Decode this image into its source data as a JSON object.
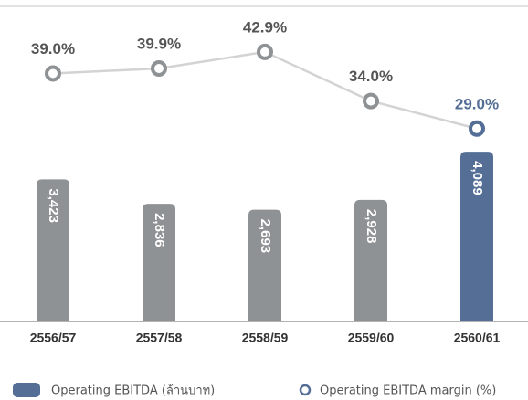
{
  "chart_data": {
    "type": "bar",
    "categories": [
      "2556/57",
      "2557/58",
      "2558/59",
      "2559/60",
      "2560/61"
    ],
    "series": [
      {
        "name": "Operating EBITDA (ล้านบาท)",
        "type": "bar",
        "colors": [
          "#8f9294",
          "#8f9294",
          "#8f9294",
          "#8f9294",
          "#546e96"
        ],
        "values": [
          3423,
          2836,
          2693,
          2928,
          4089
        ],
        "value_labels": [
          "3,423",
          "2,836",
          "2,693",
          "2,928",
          "4,089"
        ]
      },
      {
        "name": "Operating EBITDA margin (%)",
        "type": "line",
        "axis": "y2",
        "color": "#d3d3d3",
        "colors": [
          "#8f9294",
          "#8f9294",
          "#8f9294",
          "#8f9294",
          "#546e96"
        ],
        "label_colors": [
          "#555555",
          "#555555",
          "#555555",
          "#555555",
          "#546e96"
        ],
        "values": [
          39.0,
          39.9,
          42.9,
          34.0,
          29.0
        ],
        "value_labels": [
          "39.0%",
          "39.9%",
          "42.9%",
          "34.0%",
          "29.0%"
        ]
      }
    ],
    "ylim": [
      0,
      5500
    ],
    "y2lim": [
      -6,
      52
    ]
  }
}
